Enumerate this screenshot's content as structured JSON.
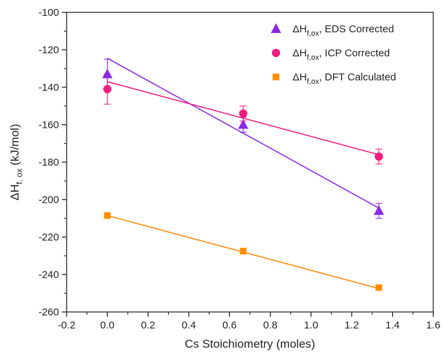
{
  "chart_data": {
    "type": "scatter",
    "xlabel": "Cs Stoichiometry (moles)",
    "ylabel": {
      "main": "ΔH",
      "sub": "f, ox",
      "unit": " (kJ/mol)"
    },
    "xlim": [
      -0.2,
      1.6
    ],
    "ylim": [
      -260,
      -100
    ],
    "xticks": [
      -0.2,
      0.0,
      0.2,
      0.4,
      0.6,
      0.8,
      1.0,
      1.2,
      1.4,
      1.6
    ],
    "xtick_labels": [
      "-0.2",
      "0.0",
      "0.2",
      "0.4",
      "0.6",
      "0.8",
      "1.0",
      "1.2",
      "1.4",
      "1.6"
    ],
    "yticks": [
      -260,
      -240,
      -220,
      -200,
      -180,
      -160,
      -140,
      -120,
      -100
    ],
    "ytick_labels": [
      "-260",
      "-240",
      "-220",
      "-200",
      "-180",
      "-160",
      "-140",
      "-120",
      "-100"
    ],
    "grid": false,
    "legend_position": "top-right",
    "series": [
      {
        "name_main": "ΔH",
        "name_sub": "f,ox",
        "name_rest": ", EDS Corrected",
        "marker": "triangle",
        "color": "#8B2BE2",
        "x": [
          0.0,
          0.667,
          1.333
        ],
        "y": [
          -133,
          -160,
          -206
        ],
        "err": [
          8,
          4,
          4
        ],
        "fit": {
          "x": [
            0.0,
            1.333
          ],
          "y": [
            -124.5,
            -204.5
          ]
        }
      },
      {
        "name_main": "ΔH",
        "name_sub": "f,ox",
        "name_rest": ", ICP Corrected",
        "marker": "circle",
        "color": "#EE1E7E",
        "x": [
          0.0,
          0.667,
          1.333
        ],
        "y": [
          -141,
          -154,
          -177
        ],
        "err": [
          8,
          4,
          4
        ],
        "fit": {
          "x": [
            0.0,
            1.333
          ],
          "y": [
            -137,
            -176
          ]
        }
      },
      {
        "name_main": "ΔH",
        "name_sub": "f,ox",
        "name_rest": ", DFT Calculated",
        "marker": "square",
        "color": "#FF8C00",
        "x": [
          0.0,
          0.667,
          1.333
        ],
        "y": [
          -208.5,
          -227.5,
          -247
        ],
        "err": [
          0,
          0,
          0
        ],
        "fit": {
          "x": [
            0.0,
            1.333
          ],
          "y": [
            -208.5,
            -247.5
          ]
        }
      }
    ]
  }
}
